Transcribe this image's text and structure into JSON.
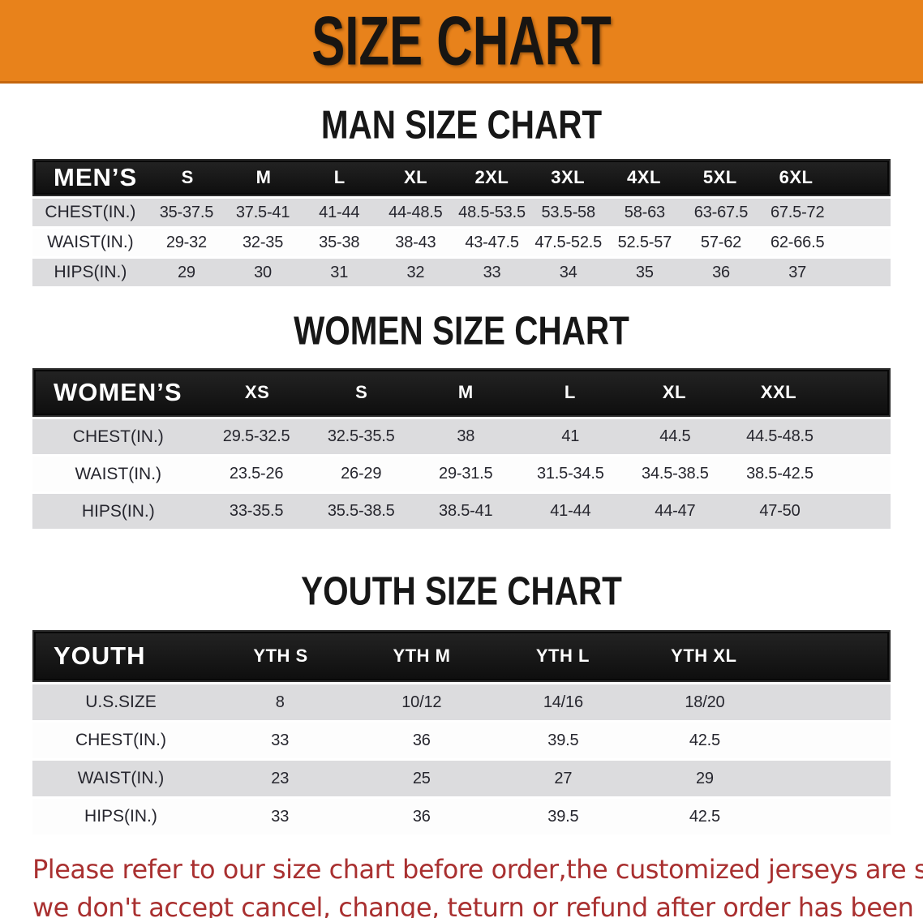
{
  "banner": {
    "title": "SIZE CHART"
  },
  "sections": [
    {
      "heading": "MAN SIZE CHART",
      "table": {
        "label": "MEN’S",
        "columns": [
          "S",
          "M",
          "L",
          "XL",
          "2XL",
          "3XL",
          "4XL",
          "5XL",
          "6XL"
        ],
        "rows": [
          {
            "label": "CHEST(IN.)",
            "values": [
              "35-37.5",
              "37.5-41",
              "41-44",
              "44-48.5",
              "48.5-53.5",
              "53.5-58",
              "58-63",
              "63-67.5",
              "67.5-72"
            ]
          },
          {
            "label": "WAIST(IN.)",
            "values": [
              "29-32",
              "32-35",
              "35-38",
              "38-43",
              "43-47.5",
              "47.5-52.5",
              "52.5-57",
              "57-62",
              "62-66.5"
            ]
          },
          {
            "label": "HIPS(IN.)",
            "values": [
              "29",
              "30",
              "31",
              "32",
              "33",
              "34",
              "35",
              "36",
              "37"
            ]
          }
        ]
      }
    },
    {
      "heading": "WOMEN SIZE CHART",
      "table": {
        "label": "WOMEN’S",
        "columns": [
          "XS",
          "S",
          "M",
          "L",
          "XL",
          "XXL"
        ],
        "rows": [
          {
            "label": "CHEST(IN.)",
            "values": [
              "29.5-32.5",
              "32.5-35.5",
              "38",
              "41",
              "44.5",
              "44.5-48.5"
            ]
          },
          {
            "label": "WAIST(IN.)",
            "values": [
              "23.5-26",
              "26-29",
              "29-31.5",
              "31.5-34.5",
              "34.5-38.5",
              "38.5-42.5"
            ]
          },
          {
            "label": "HIPS(IN.)",
            "values": [
              "33-35.5",
              "35.5-38.5",
              "38.5-41",
              "41-44",
              "44-47",
              "47-50"
            ]
          }
        ]
      }
    },
    {
      "heading": "YOUTH SIZE CHART",
      "table": {
        "label": "YOUTH",
        "columns": [
          "YTH S",
          "YTH M",
          "YTH L",
          "YTH XL"
        ],
        "rows": [
          {
            "label": "U.S.SIZE",
            "values": [
              "8",
              "10/12",
              "14/16",
              "18/20"
            ]
          },
          {
            "label": "CHEST(IN.)",
            "values": [
              "33",
              "36",
              "39.5",
              "42.5"
            ]
          },
          {
            "label": "WAIST(IN.)",
            "values": [
              "23",
              "25",
              "27",
              "29"
            ]
          },
          {
            "label": "HIPS(IN.)",
            "values": [
              "33",
              "36",
              "39.5",
              "42.5"
            ]
          }
        ]
      }
    }
  ],
  "footer": {
    "lines": [
      "Please refer to our size chart before order,the customized jerseys are special products,",
      "we don't accept cancel, change, teturn or refund after order has been placed!"
    ]
  },
  "colors": {
    "banner_bg": "#e8821b",
    "banner_text": "#181512",
    "bar_bg": "#141414",
    "bar_text": "#ffffff",
    "row_gray": "#dcdcde",
    "row_white": "#fdfdfd",
    "data_text": "#26262e",
    "footer_text": "#a93030"
  }
}
